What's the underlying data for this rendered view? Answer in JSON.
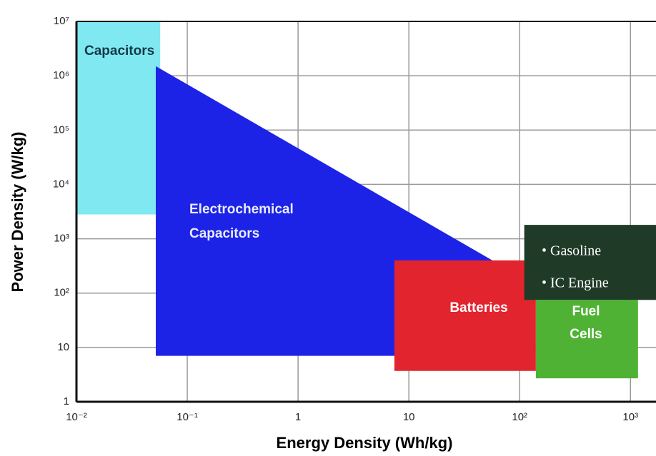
{
  "chart_data": {
    "type": "region",
    "x_label": "Energy Density (Wh/kg)",
    "y_label": "Power Density (W/kg)",
    "log_x": true,
    "log_y": true,
    "grid": true,
    "xlim": [
      0.01,
      1700
    ],
    "ylim": [
      1,
      10000000
    ],
    "xticks": [
      {
        "value": 0.01,
        "label": "10⁻²"
      },
      {
        "value": 0.1,
        "label": "10⁻¹"
      },
      1,
      10,
      {
        "value": 100,
        "label": "10²"
      },
      {
        "value": 1000,
        "label": "10³"
      }
    ],
    "yticks": [
      1,
      10,
      {
        "value": 100,
        "label": "10²"
      },
      {
        "value": 1000,
        "label": "10³"
      },
      {
        "value": 10000,
        "label": "10⁴"
      },
      {
        "value": 100000,
        "label": "10⁵"
      },
      {
        "value": 1000000,
        "label": "10⁶"
      },
      {
        "value": 10000000,
        "label": "10⁷"
      }
    ],
    "regions": [
      {
        "label": [
          "Capacitors"
        ],
        "color": "#80e8f0",
        "text_color": "#123a4a",
        "x": [
          0.01,
          0.057,
          0.057,
          0.01
        ],
        "y": [
          10000000,
          10000000,
          2800,
          2800
        ]
      },
      {
        "label": [
          "Electrochemical",
          "Capacitors"
        ],
        "color": "#1c22e6",
        "text_color": "#e8ecff",
        "x": [
          0.052,
          58,
          58,
          0.052
        ],
        "y": [
          1500000,
          390,
          7,
          7
        ]
      },
      {
        "label": [
          "Batteries"
        ],
        "color": "#e2242e",
        "text_color": "#ffffff",
        "x": [
          7.4,
          140,
          140,
          7.4
        ],
        "y": [
          400,
          400,
          3.7,
          3.7
        ]
      },
      {
        "label": [
          "Fuel",
          "Cells"
        ],
        "color": "#4fb234",
        "text_color": "#ffffff",
        "x": [
          140,
          1170,
          1170,
          140
        ],
        "y": [
          75,
          75,
          2.7,
          2.7
        ]
      },
      {
        "label": [
          "• Gasoline",
          "• IC Engine"
        ],
        "color": "#1f3a26",
        "text_color": "#ffffff",
        "x": [
          110,
          1700,
          1700,
          110
        ],
        "y": [
          1800,
          1800,
          75,
          75
        ]
      }
    ]
  }
}
